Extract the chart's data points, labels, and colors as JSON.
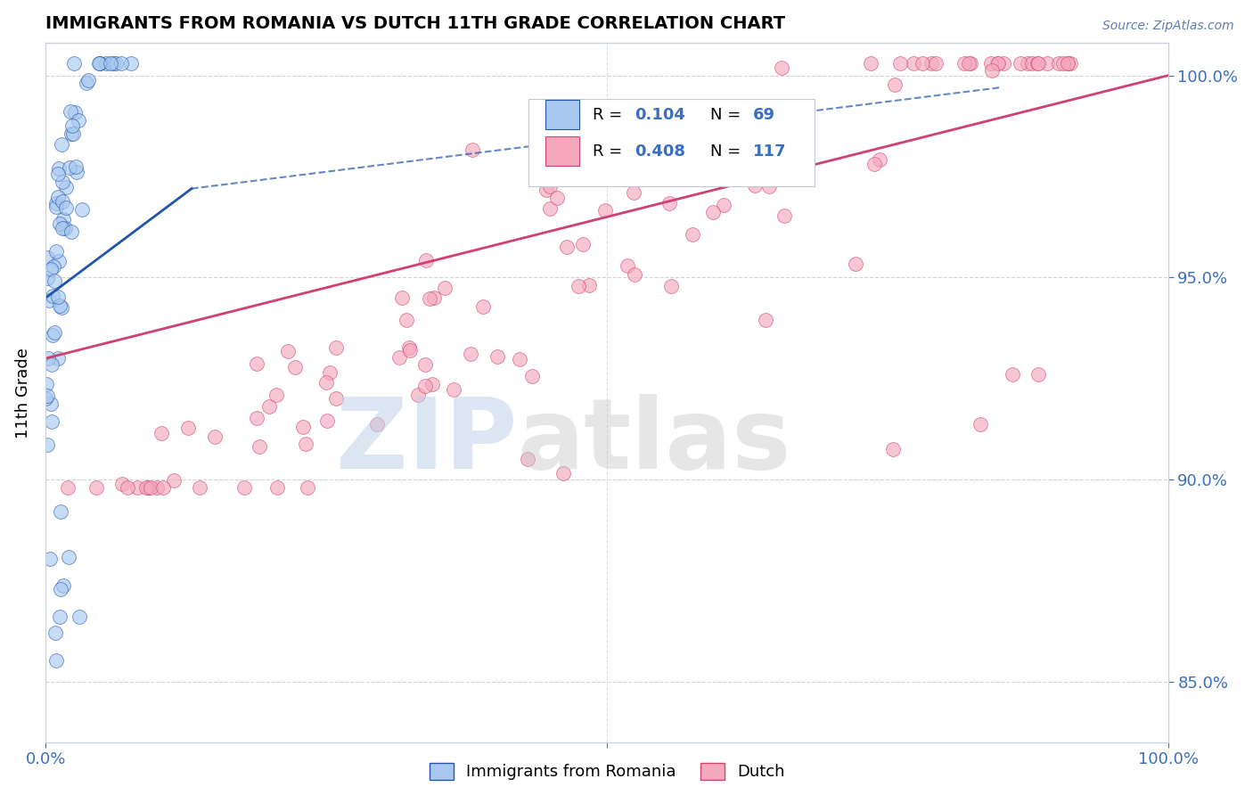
{
  "title": "IMMIGRANTS FROM ROMANIA VS DUTCH 11TH GRADE CORRELATION CHART",
  "source_text": "Source: ZipAtlas.com",
  "ylabel": "11th Grade",
  "legend_label1": "Immigrants from Romania",
  "legend_label2": "Dutch",
  "R1": 0.104,
  "N1": 69,
  "R2": 0.408,
  "N2": 117,
  "color1": "#A8C8F0",
  "color2": "#F4A8BC",
  "trend1_color": "#2255AA",
  "trend2_color": "#D04070",
  "background_color": "#FFFFFF",
  "right_yticks": [
    0.85,
    0.9,
    0.95,
    1.0
  ],
  "right_ytick_labels": [
    "85.0%",
    "90.0%",
    "95.0%",
    "100.0%"
  ],
  "ylim_low": 0.835,
  "ylim_high": 1.008,
  "xlim_low": 0.0,
  "xlim_high": 1.0
}
